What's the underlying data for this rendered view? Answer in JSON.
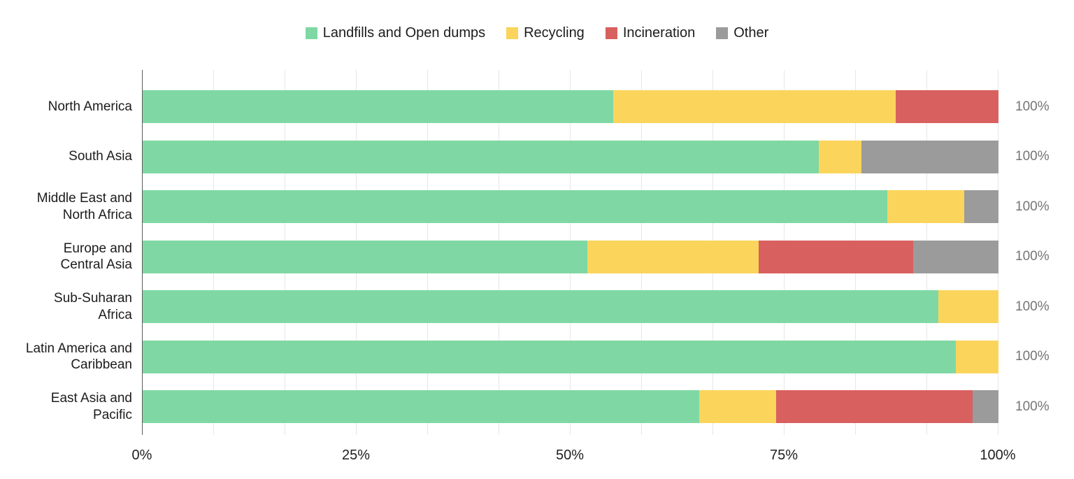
{
  "chart_data": {
    "type": "bar",
    "orientation": "horizontal",
    "stacked": true,
    "stack_total": 100,
    "title": "",
    "xlabel": "",
    "ylabel": "",
    "xlim": [
      0,
      100
    ],
    "x_ticks": [
      {
        "label": "0%",
        "value": 0
      },
      {
        "label": "25%",
        "value": 25
      },
      {
        "label": "50%",
        "value": 50
      },
      {
        "label": "75%",
        "value": 75
      },
      {
        "label": "100%",
        "value": 100
      }
    ],
    "minor_grid_step_percent": 8.333,
    "legend_position": "top",
    "categories": [
      "North America",
      "South Asia",
      "Middle East and\nNorth Africa",
      "Europe and\nCentral Asia",
      "Sub-Suharan\nAfrica",
      "Latin America and\nCaribbean",
      "East Asia and\nPacific"
    ],
    "series": [
      {
        "name": "Landfills and Open dumps",
        "color": "#7fd8a4",
        "values": [
          55,
          79,
          87,
          52,
          93,
          95,
          65
        ]
      },
      {
        "name": "Recycling",
        "color": "#fbd45c",
        "values": [
          33,
          5,
          9,
          20,
          7,
          5,
          9
        ]
      },
      {
        "name": "Incineration",
        "color": "#d8605f",
        "values": [
          12,
          0,
          0,
          18,
          0,
          0,
          23
        ]
      },
      {
        "name": "Other",
        "color": "#9b9b9b",
        "values": [
          0,
          16,
          4,
          10,
          0,
          0,
          3
        ]
      }
    ],
    "bar_end_labels": [
      "100%",
      "100%",
      "100%",
      "100%",
      "100%",
      "100%",
      "100%"
    ]
  },
  "colors": {
    "background": "#ffffff",
    "axis_line": "#5c5c5c",
    "gridline": "#e7e7e7",
    "category_text": "#1c1c1c",
    "tick_text": "#1f1f1f",
    "end_label_text": "#757575"
  }
}
